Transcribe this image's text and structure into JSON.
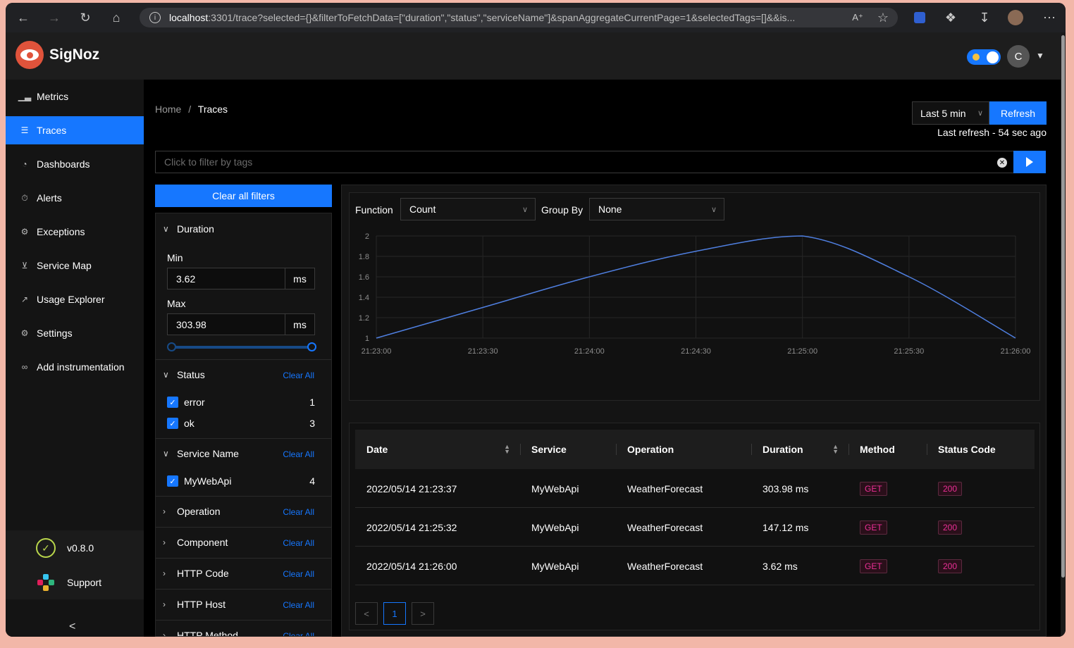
{
  "browser": {
    "url_host": "localhost",
    "url_rest": ":3301/trace?selected={}&filterToFetchData=[\"duration\",\"status\",\"serviceName\"]&spanAggregateCurrentPage=1&selectedTags=[]&&is..."
  },
  "app": {
    "name": "SigNoz",
    "avatar_initial": "C"
  },
  "sidebar": {
    "items": [
      {
        "label": "Metrics",
        "icon": "bar-chart-icon"
      },
      {
        "label": "Traces",
        "icon": "list-icon"
      },
      {
        "label": "Dashboards",
        "icon": "dashboard-icon"
      },
      {
        "label": "Alerts",
        "icon": "alarm-icon"
      },
      {
        "label": "Exceptions",
        "icon": "bug-icon"
      },
      {
        "label": "Service Map",
        "icon": "deployment-icon"
      },
      {
        "label": "Usage Explorer",
        "icon": "line-chart-icon"
      },
      {
        "label": "Settings",
        "icon": "gear-icon"
      },
      {
        "label": "Add instrumentation",
        "icon": "api-icon"
      }
    ],
    "active_index": 1,
    "version": "v0.8.0",
    "support": "Support"
  },
  "breadcrumb": {
    "home": "Home",
    "sep": "/",
    "current": "Traces"
  },
  "time": {
    "selected": "Last 5 min",
    "refresh_label": "Refresh",
    "last_refresh": "Last refresh - 54 sec ago"
  },
  "filter_bar": {
    "placeholder": "Click to filter by tags"
  },
  "clear_all_filters": "Clear all filters",
  "filters": {
    "clear_all": "Clear All",
    "duration": {
      "title": "Duration",
      "min_label": "Min",
      "min_value": "3.62",
      "max_label": "Max",
      "max_value": "303.98",
      "unit": "ms"
    },
    "status": {
      "title": "Status",
      "options": [
        {
          "label": "error",
          "count": "1"
        },
        {
          "label": "ok",
          "count": "3"
        }
      ]
    },
    "service_name": {
      "title": "Service Name",
      "options": [
        {
          "label": "MyWebApi",
          "count": "4"
        }
      ]
    },
    "collapsed": [
      "Operation",
      "Component",
      "HTTP Code",
      "HTTP Host",
      "HTTP Method"
    ]
  },
  "chart_controls": {
    "function_label": "Function",
    "function_value": "Count",
    "groupby_label": "Group By",
    "groupby_value": "None"
  },
  "chart_data": {
    "type": "line",
    "title": "",
    "xlabel": "",
    "ylabel": "",
    "x": [
      "21:23:00",
      "21:23:30",
      "21:24:00",
      "21:24:30",
      "21:25:00",
      "21:25:30",
      "21:26:00"
    ],
    "values": [
      1,
      1.3,
      1.6,
      1.85,
      2,
      1.6,
      1
    ],
    "yticks": [
      "1",
      "1.2",
      "1.4",
      "1.6",
      "1.8",
      "2"
    ],
    "ylim": [
      1,
      2
    ],
    "grid": true,
    "line_color": "#4f7fe0"
  },
  "table": {
    "columns": [
      "Date",
      "Service",
      "Operation",
      "Duration",
      "Method",
      "Status Code"
    ],
    "rows": [
      {
        "date": "2022/05/14 21:23:37",
        "service": "MyWebApi",
        "operation": "WeatherForecast",
        "duration": "303.98 ms",
        "method": "GET",
        "status": "200"
      },
      {
        "date": "2022/05/14 21:25:32",
        "service": "MyWebApi",
        "operation": "WeatherForecast",
        "duration": "147.12 ms",
        "method": "GET",
        "status": "200"
      },
      {
        "date": "2022/05/14 21:26:00",
        "service": "MyWebApi",
        "operation": "WeatherForecast",
        "duration": "3.62 ms",
        "method": "GET",
        "status": "200"
      }
    ]
  },
  "pagination": {
    "prev": "<",
    "page": "1",
    "next": ">"
  }
}
